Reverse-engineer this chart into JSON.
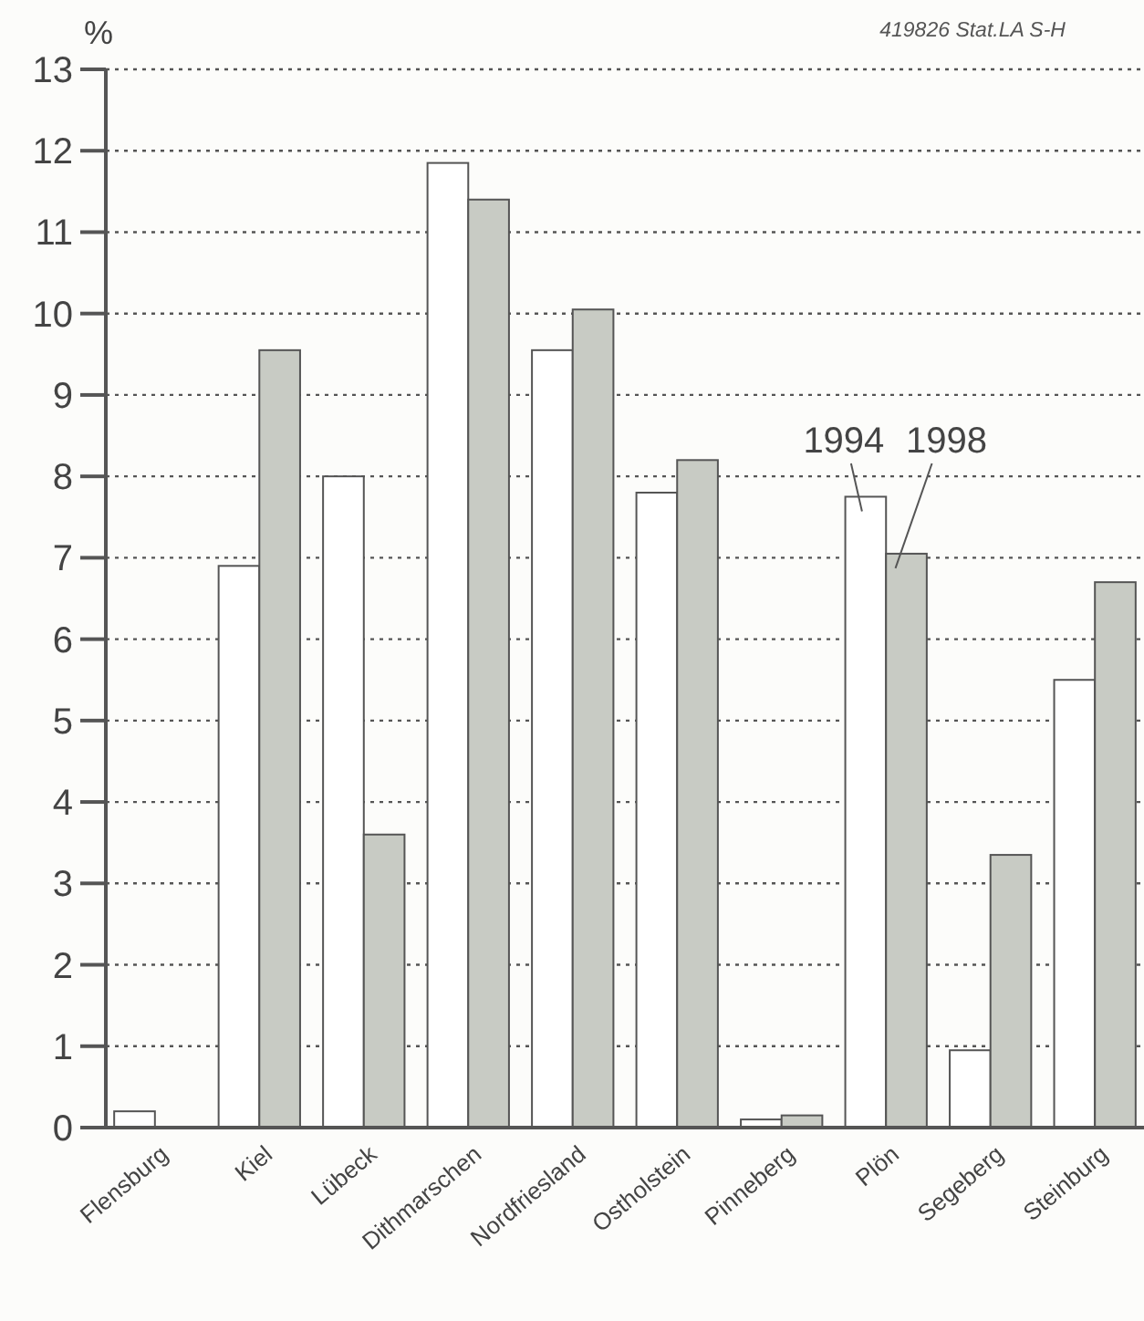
{
  "chart_data": {
    "type": "bar",
    "ylabel": "%",
    "annotations": [
      "419826 Stat.LA S-H"
    ],
    "categories": [
      "Flensburg",
      "Kiel",
      "Lübeck",
      "Dithmarschen",
      "Nordfriesland",
      "Ostholstein",
      "Pinneberg",
      "Plön",
      "Segeberg",
      "Steinburg"
    ],
    "series": [
      {
        "name": "1994",
        "color": "#ffffff",
        "values": [
          0.2,
          6.9,
          8.0,
          11.85,
          9.55,
          7.8,
          0.1,
          7.75,
          0.95,
          5.5
        ]
      },
      {
        "name": "1998",
        "color": "#c8cbc4",
        "values": [
          0,
          9.55,
          3.6,
          11.4,
          10.05,
          8.2,
          0.15,
          7.05,
          3.35,
          6.7
        ]
      }
    ],
    "ylim": [
      0,
      13
    ],
    "yticks": [
      0,
      1,
      2,
      3,
      4,
      5,
      6,
      7,
      8,
      9,
      10,
      11,
      12,
      13
    ],
    "grid": "y",
    "legend": false
  }
}
